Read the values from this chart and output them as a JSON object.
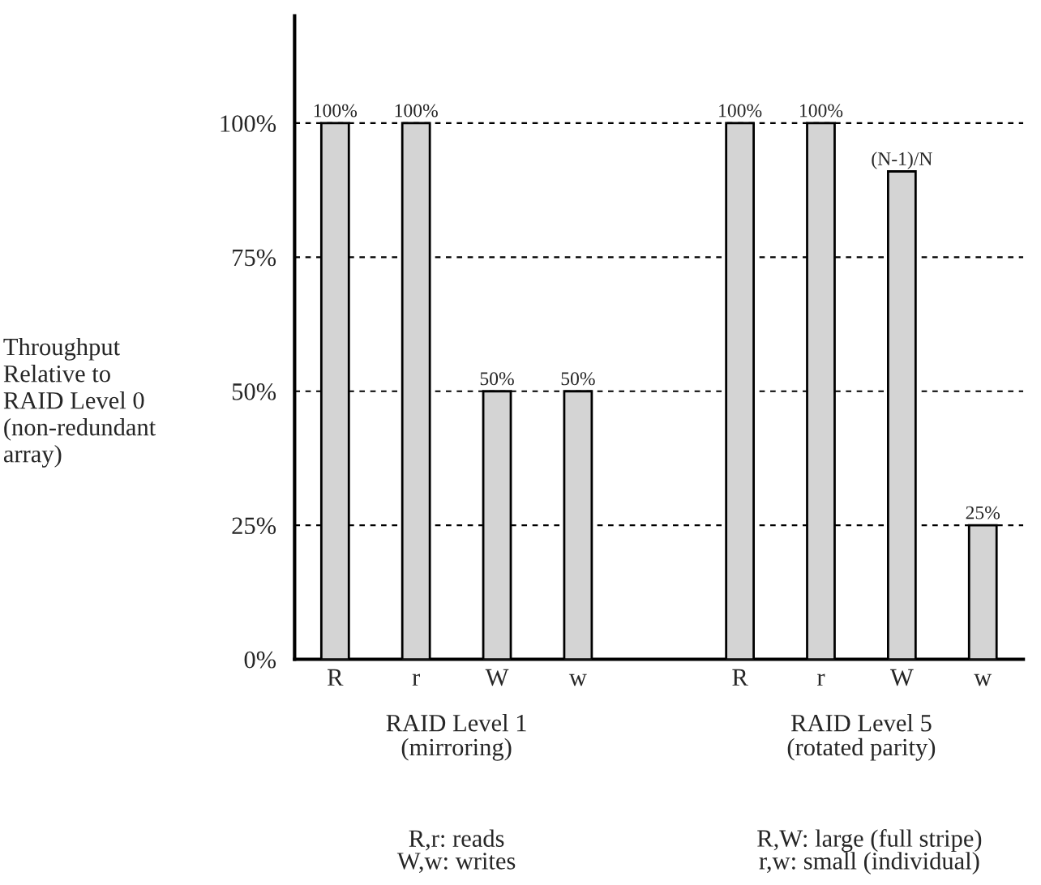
{
  "chart_data": {
    "type": "bar",
    "ylabel": "Throughput\nRelative to\nRAID Level 0\n(non-redundant\narray)",
    "categories": [
      "R",
      "r",
      "W",
      "w",
      null,
      "R",
      "r",
      "W",
      "w"
    ],
    "values": [
      100,
      100,
      50,
      50,
      null,
      100,
      100,
      91,
      25
    ],
    "value_labels": [
      "100%",
      "100%",
      "50%",
      "50%",
      null,
      "100%",
      "100%",
      "(N-1)/N",
      "25%"
    ],
    "color": "#d4d4d4",
    "ylim": [
      0,
      120
    ],
    "yticks": [
      {
        "value": 0,
        "label": "0%"
      },
      {
        "value": 25,
        "label": "25%"
      },
      {
        "value": 50,
        "label": "50%"
      },
      {
        "value": 75,
        "label": "75%"
      },
      {
        "value": 100,
        "label": "100%"
      }
    ],
    "grid": "y",
    "annotations": [
      "RAID Level 1\n(mirroring)",
      "RAID Level 5\n(rotated parity)",
      "R,r: reads\nW,w: writes",
      "R,W: large (full stripe)\nr,w: small (individual)"
    ]
  }
}
